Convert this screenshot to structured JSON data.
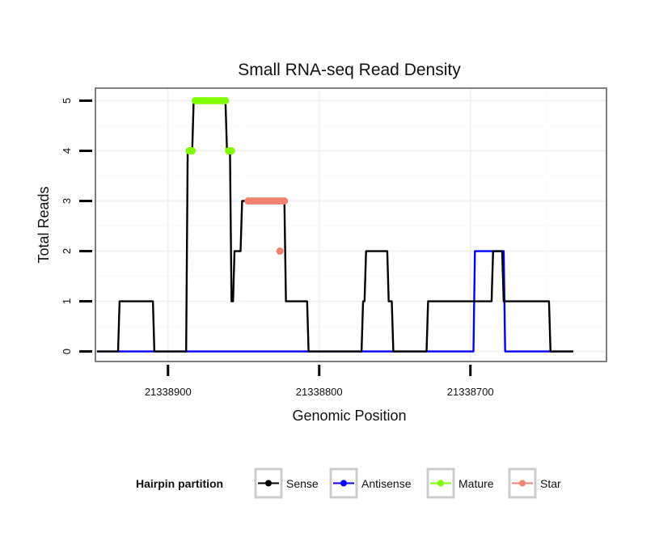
{
  "chart_data": {
    "type": "line",
    "title": "Small RNA-seq Read Density",
    "xlabel": "Genomic Position",
    "ylabel": "Total Reads",
    "x_reversed": true,
    "xlim": [
      21338948,
      21338610
    ],
    "ylim": [
      -0.2,
      5.25
    ],
    "x_ticks": [
      21338900,
      21338800,
      21338700
    ],
    "x_tick_labels": [
      "21338900",
      "21338800",
      "21338700"
    ],
    "y_ticks": [
      0,
      1,
      2,
      3,
      4,
      5
    ],
    "y_tick_labels": [
      "0",
      "1",
      "2",
      "3",
      "4",
      "5"
    ],
    "grid": true,
    "legend": {
      "title": "Hairpin partition",
      "position": "bottom",
      "entries": [
        {
          "label": "Sense",
          "color": "#000000"
        },
        {
          "label": "Antisense",
          "color": "#0000ff"
        },
        {
          "label": "Mature",
          "color": "#80ff00"
        },
        {
          "label": "Star",
          "color": "#f08070"
        }
      ]
    },
    "series": [
      {
        "name": "Sense",
        "color": "#000000",
        "style": "line",
        "x": [
          21338947,
          21338933,
          21338932,
          21338910,
          21338909,
          21338888,
          21338887,
          21338884,
          21338883,
          21338882,
          21338881,
          21338862,
          21338861,
          21338859,
          21338858,
          21338857,
          21338856,
          21338852,
          21338851,
          21338847,
          21338846,
          21338823,
          21338822,
          21338808,
          21338807,
          21338772,
          21338771,
          21338770,
          21338769,
          21338755,
          21338754,
          21338752,
          21338751,
          21338729,
          21338728,
          21338707,
          21338706,
          21338686,
          21338685,
          21338679,
          21338678,
          21338669,
          21338668,
          21338648,
          21338647,
          21338632
        ],
        "y": [
          0,
          0,
          1,
          1,
          0,
          0,
          4,
          4,
          5,
          5,
          5,
          5,
          4,
          4,
          1,
          1,
          2,
          2,
          3,
          3,
          3,
          3,
          1,
          1,
          0,
          0,
          1,
          1,
          2,
          2,
          1,
          1,
          0,
          0,
          1,
          1,
          1,
          1,
          2,
          2,
          1,
          1,
          1,
          1,
          0,
          0
        ]
      },
      {
        "name": "Antisense",
        "color": "#0000ff",
        "style": "line",
        "x": [
          21338947,
          21338698,
          21338697,
          21338678,
          21338677,
          21338632
        ],
        "y": [
          0,
          0,
          2,
          2,
          0,
          0
        ]
      },
      {
        "name": "Mature",
        "color": "#80ff00",
        "style": "points",
        "x": [
          21338886,
          21338885,
          21338884,
          21338882,
          21338880,
          21338878,
          21338876,
          21338874,
          21338872,
          21338870,
          21338868,
          21338866,
          21338864,
          21338862,
          21338860,
          21338859,
          21338858
        ],
        "y": [
          4,
          4,
          4,
          5,
          5,
          5,
          5,
          5,
          5,
          5,
          5,
          5,
          5,
          5,
          4,
          4,
          4
        ]
      },
      {
        "name": "Star",
        "color": "#f08070",
        "style": "points",
        "x": [
          21338847,
          21338845,
          21338843,
          21338841,
          21338839,
          21338837,
          21338835,
          21338833,
          21338831,
          21338829,
          21338827,
          21338826,
          21338825,
          21338823
        ],
        "y": [
          3,
          3,
          3,
          3,
          3,
          3,
          3,
          3,
          3,
          3,
          3,
          2,
          3,
          3
        ]
      }
    ]
  }
}
